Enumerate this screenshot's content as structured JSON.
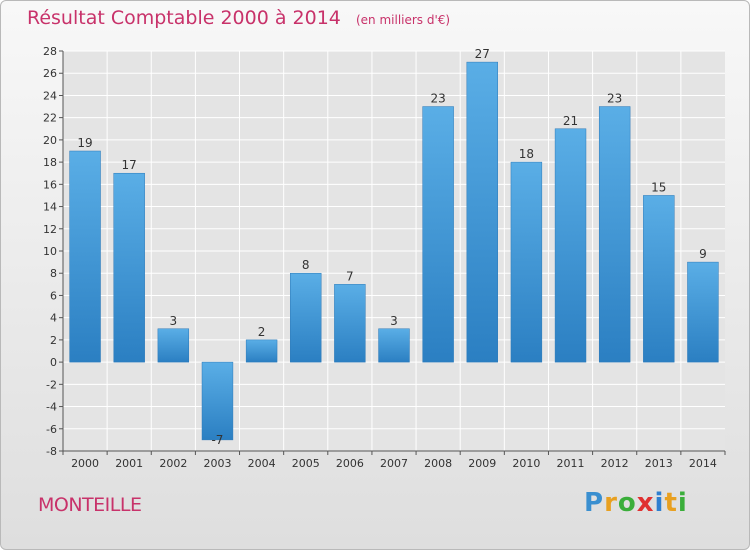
{
  "chart_data": {
    "type": "bar",
    "title": "Résultat Comptable 2000 à 2014",
    "unit": "(en milliers d'€)",
    "categories": [
      "2000",
      "2001",
      "2002",
      "2003",
      "2004",
      "2005",
      "2006",
      "2007",
      "2008",
      "2009",
      "2010",
      "2011",
      "2012",
      "2013",
      "2014"
    ],
    "values": [
      19,
      17,
      3,
      -7,
      2,
      8,
      7,
      3,
      23,
      27,
      18,
      21,
      23,
      15,
      9
    ],
    "ylim": [
      -8,
      28
    ],
    "yticks": [
      -8,
      -6,
      -4,
      -2,
      0,
      2,
      4,
      6,
      8,
      10,
      12,
      14,
      16,
      18,
      20,
      22,
      24,
      26,
      28
    ],
    "grid": true,
    "xlabel": "",
    "ylabel": ""
  },
  "commune_name": "MONTEILLE",
  "logo": {
    "letters": [
      "P",
      "r",
      "o",
      "x",
      "i",
      "t",
      "i"
    ],
    "colors": [
      "#3a8fd0",
      "#e8a020",
      "#3aae3a",
      "#e03030",
      "#2f7fd0",
      "#e8a020",
      "#3aae3a"
    ]
  },
  "colors": {
    "bar_top": "#5aaee6",
    "bar_bottom": "#2b7fc2",
    "title": "#c8326a"
  }
}
